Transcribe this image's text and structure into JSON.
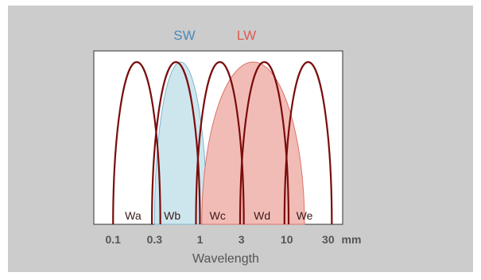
{
  "chart_data": {
    "type": "area",
    "x_scale": "log",
    "x_unit": "mm",
    "xlabel": "Wavelength",
    "xlim": [
      0.06,
      44
    ],
    "tick_values": [
      0.1,
      0.3,
      1,
      3,
      10,
      30
    ],
    "tick_labels": [
      "0.1",
      "0.3",
      "1",
      "3",
      "10",
      "30"
    ],
    "unit_label": "mm",
    "legend": [
      {
        "label": "SW",
        "color": "#4a8ab8"
      },
      {
        "label": "LW",
        "color": "#e05a50"
      }
    ],
    "bands": [
      {
        "name": "SW",
        "from": 0.3,
        "to": 1.2,
        "color": "#cde6ee",
        "edge": "#7fb6cc"
      },
      {
        "name": "LW",
        "from": 1.05,
        "to": 16,
        "color": "#f2bcb6",
        "edge": "#d9736b"
      }
    ],
    "windows": [
      {
        "label": "Wa",
        "from": 0.1,
        "to": 0.35,
        "label_x": 0.17
      },
      {
        "label": "Wb",
        "from": 0.28,
        "to": 1.0,
        "label_x": 0.48
      },
      {
        "label": "Wc",
        "from": 0.9,
        "to": 3.2,
        "label_x": 1.6
      },
      {
        "label": "Wd",
        "from": 2.9,
        "to": 10.5,
        "label_x": 5.2
      },
      {
        "label": "We",
        "from": 9.4,
        "to": 33,
        "label_x": 16
      }
    ],
    "window_color": "#7a0c0c"
  }
}
